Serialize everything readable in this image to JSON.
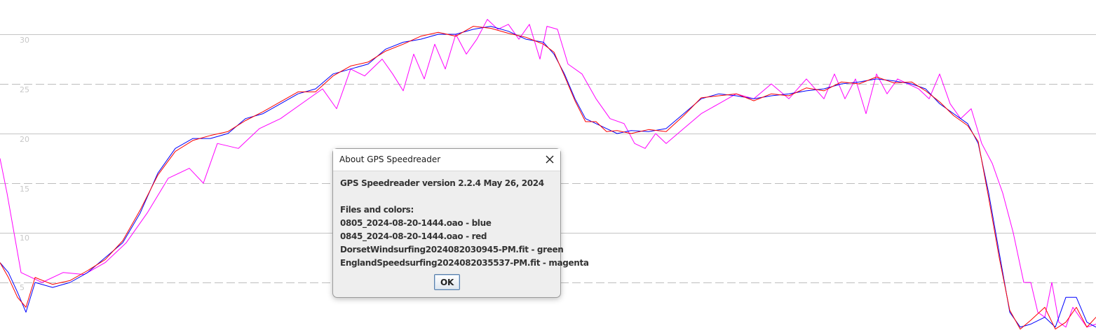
{
  "chart_data": {
    "type": "line",
    "ylim": [
      0,
      33
    ],
    "x_domain": [
      0,
      1563
    ],
    "grid": "horizontal lines, solid at multiples of 10, dashed at odd multiples of 5",
    "y_ticks": [
      "5",
      "10",
      "15",
      "20",
      "25",
      "30"
    ],
    "series": [
      {
        "color": "#0000ff",
        "x": [
          0,
          12,
          25,
          37,
          50,
          75,
          100,
          125,
          150,
          175,
          200,
          225,
          250,
          275,
          300,
          325,
          350,
          375,
          400,
          425,
          450,
          475,
          500,
          525,
          550,
          575,
          600,
          625,
          650,
          675,
          700,
          725,
          750,
          775,
          790,
          805,
          820,
          835,
          850,
          865,
          880,
          900,
          925,
          950,
          975,
          1000,
          1025,
          1050,
          1075,
          1100,
          1125,
          1150,
          1175,
          1200,
          1225,
          1250,
          1275,
          1300,
          1320,
          1340,
          1360,
          1380,
          1395,
          1410,
          1425,
          1440,
          1455,
          1470,
          1490,
          1505,
          1520,
          1535,
          1550,
          1563
        ],
        "y": [
          7,
          6,
          4,
          2,
          5,
          4.5,
          5,
          6,
          7.5,
          9,
          12,
          16,
          18.5,
          19.5,
          19.5,
          20,
          21.5,
          22,
          23,
          24,
          24.5,
          26,
          26.5,
          27,
          28.5,
          29.2,
          29.5,
          30,
          30,
          30.5,
          30.8,
          30.3,
          29.5,
          29.2,
          28,
          26,
          23.5,
          21.5,
          21,
          20.5,
          20,
          20.3,
          20.2,
          20.5,
          22,
          23.5,
          24,
          23.8,
          23.5,
          23.8,
          24,
          24.3,
          24.5,
          25,
          25.2,
          25.5,
          25.3,
          25,
          24.5,
          23,
          22,
          21,
          19,
          14,
          8,
          2,
          0.5,
          0.8,
          1.5,
          0.5,
          3.5,
          3.5,
          1,
          0.5
        ]
      },
      {
        "color": "#ff0000",
        "x": [
          0,
          12,
          25,
          37,
          50,
          75,
          100,
          125,
          150,
          175,
          200,
          225,
          250,
          275,
          300,
          325,
          350,
          375,
          400,
          425,
          450,
          475,
          500,
          525,
          550,
          575,
          600,
          625,
          650,
          675,
          700,
          725,
          750,
          775,
          790,
          805,
          820,
          835,
          850,
          865,
          880,
          900,
          925,
          950,
          975,
          1000,
          1025,
          1050,
          1075,
          1100,
          1125,
          1150,
          1175,
          1200,
          1225,
          1250,
          1275,
          1300,
          1320,
          1340,
          1360,
          1380,
          1395,
          1410,
          1425,
          1440,
          1455,
          1470,
          1490,
          1505,
          1520,
          1535,
          1550,
          1563
        ],
        "y": [
          7,
          5.5,
          3.5,
          2.5,
          5.5,
          4.8,
          5.2,
          6.2,
          7.3,
          9.2,
          12.3,
          15.8,
          18.2,
          19.3,
          19.8,
          20.2,
          21.3,
          22.2,
          23.2,
          24.2,
          24.2,
          25.8,
          26.8,
          27.2,
          28.3,
          29,
          29.8,
          30.2,
          29.8,
          30.8,
          30.6,
          30.1,
          29.7,
          29,
          28.2,
          25.8,
          23.3,
          21.2,
          21.2,
          20.2,
          20.3,
          20,
          20.4,
          20.2,
          21.8,
          23.6,
          23.8,
          24,
          23.3,
          24,
          23.8,
          24.6,
          24.3,
          25.2,
          25,
          25.7,
          25.1,
          25.2,
          24.3,
          23.2,
          21.8,
          20.8,
          19.2,
          13.5,
          7.5,
          2.2,
          0.3,
          1.2,
          2.5,
          0.3,
          1,
          2.5,
          0.5,
          1.5
        ]
      },
      {
        "color": "#ff00ff",
        "x": [
          0,
          10,
          20,
          30,
          45,
          60,
          90,
          120,
          150,
          180,
          210,
          240,
          270,
          290,
          310,
          340,
          370,
          400,
          430,
          460,
          480,
          500,
          520,
          545,
          560,
          575,
          590,
          605,
          620,
          635,
          650,
          665,
          680,
          695,
          710,
          725,
          740,
          755,
          770,
          780,
          795,
          810,
          830,
          850,
          870,
          890,
          905,
          920,
          935,
          950,
          975,
          1000,
          1025,
          1050,
          1075,
          1100,
          1125,
          1150,
          1175,
          1190,
          1205,
          1220,
          1235,
          1250,
          1265,
          1280,
          1295,
          1310,
          1325,
          1340,
          1355,
          1370,
          1385,
          1400,
          1415,
          1430,
          1445,
          1460,
          1470,
          1480,
          1490,
          1500,
          1510,
          1520,
          1530,
          1540,
          1550,
          1563
        ],
        "y": [
          17.5,
          14,
          10,
          6,
          5.5,
          5,
          6,
          5.8,
          7,
          9,
          12,
          15.5,
          16.5,
          15,
          19,
          18.5,
          20.5,
          21.5,
          23,
          24.5,
          22.5,
          26.5,
          25.8,
          27.5,
          26,
          24.3,
          28,
          25.5,
          29,
          26.5,
          30,
          28,
          29.5,
          31.5,
          30.5,
          31,
          29.5,
          31,
          27.5,
          30.8,
          30.5,
          27,
          26,
          23.5,
          21.5,
          21,
          19,
          18.5,
          20,
          19,
          20.5,
          22,
          23,
          24,
          23.5,
          25,
          23.5,
          25.5,
          23.5,
          26,
          23.5,
          25.5,
          22,
          26,
          24,
          25.5,
          25,
          24.5,
          23.5,
          26,
          23,
          21.5,
          22.5,
          19,
          17,
          14,
          10,
          5,
          5,
          2,
          1.5,
          5,
          1,
          0.5,
          2.5,
          1.5,
          0.5,
          0.8
        ]
      }
    ]
  },
  "dialog": {
    "title": "About GPS Speedreader",
    "version_line": "GPS Speedreader version 2.2.4 May 26, 2024",
    "files_heading": "Files and colors:",
    "files": [
      "0805_2024-08-20-1444.oao - blue",
      "0845_2024-08-20-1444.oao - red",
      "DorsetWindsurfing2024082030945-PM.fit - green",
      "EnglandSpeedsurfing2024082035537-PM.fit - magenta"
    ],
    "ok_label": "OK",
    "close_icon": "close-icon"
  }
}
